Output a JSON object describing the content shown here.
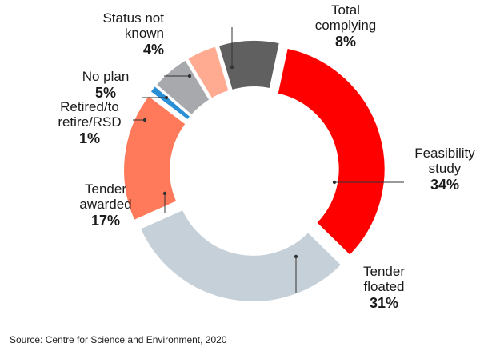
{
  "chart_data": {
    "type": "pie",
    "donut": true,
    "title": "",
    "slices": [
      {
        "label_lines": [
          "Feasibility",
          "study"
        ],
        "value": 34,
        "value_label": "34%",
        "color": "#ff0000"
      },
      {
        "label_lines": [
          "Tender",
          "floated"
        ],
        "value": 31,
        "value_label": "31%",
        "color": "#c6d0d8"
      },
      {
        "label_lines": [
          "Tender",
          "awarded"
        ],
        "value": 17,
        "value_label": "17%",
        "color": "#ff7a5a"
      },
      {
        "label_lines": [
          "Retired/to",
          "retire/RSD"
        ],
        "value": 1,
        "value_label": "1%",
        "color": "#2b8fd6"
      },
      {
        "label_lines": [
          "No plan"
        ],
        "value": 5,
        "value_label": "5%",
        "color": "#a7a9ac"
      },
      {
        "label_lines": [
          "Status not",
          "known"
        ],
        "value": 4,
        "value_label": "4%",
        "color": "#ffab91"
      },
      {
        "label_lines": [
          "Total",
          "complying"
        ],
        "value": 8,
        "value_label": "8%",
        "color": "#606060"
      }
    ]
  },
  "source": "Source: Centre for Science and Environment, 2020"
}
